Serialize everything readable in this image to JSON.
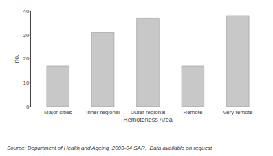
{
  "chart_data": {
    "type": "bar",
    "categories": [
      "Major cities",
      "Inner regional",
      "Outer regional",
      "Remote",
      "Very remote"
    ],
    "values": [
      17,
      31,
      37,
      17,
      38
    ],
    "color": "#c8c8c8",
    "xlabel": "Remoteness Area",
    "ylabel": "no.",
    "ylim": [
      0,
      40
    ],
    "yticks": [
      0,
      10,
      20,
      30,
      40
    ],
    "grid": false,
    "annotations": [
      "Source: Department of Health and Ageing  2003-04 SAR.  Data available on request"
    ]
  }
}
